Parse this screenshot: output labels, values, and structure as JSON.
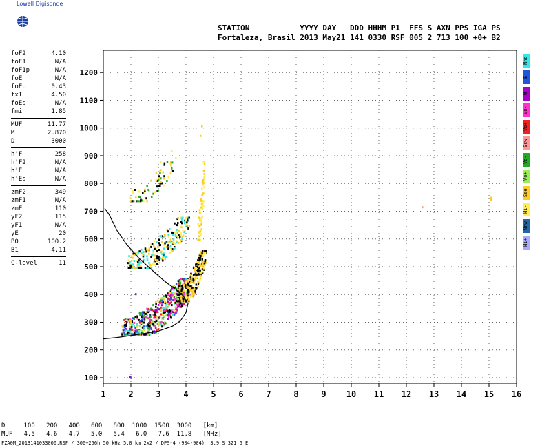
{
  "brand": {
    "name": "Lowell Digisonde"
  },
  "header": {
    "line1": "STATION           YYYY DAY   DDD HHHM P1  FFS S AXN PPS IGA PS",
    "line2": "Fortaleza, Brasil 2013 May21 141 0330 RSF 005 2 713 100 +0+ B2"
  },
  "params": [
    {
      "name": "foF2",
      "value": "4.10"
    },
    {
      "name": "foF1",
      "value": "N/A"
    },
    {
      "name": "foF1p",
      "value": "N/A"
    },
    {
      "name": "foE",
      "value": "N/A"
    },
    {
      "name": "foEp",
      "value": "0.43"
    },
    {
      "name": "fxI",
      "value": "4.50"
    },
    {
      "name": "foEs",
      "value": "N/A"
    },
    {
      "name": "fmin",
      "value": "1.85"
    },
    {
      "sep": true
    },
    {
      "name": "MUF",
      "value": "11.77"
    },
    {
      "name": "M",
      "value": "2.870"
    },
    {
      "name": "D",
      "value": "3000"
    },
    {
      "sep": true
    },
    {
      "name": "h'F",
      "value": "258"
    },
    {
      "name": "h'F2",
      "value": "N/A"
    },
    {
      "name": "h'E",
      "value": "N/A"
    },
    {
      "name": "h'Es",
      "value": "N/A"
    },
    {
      "sep": true
    },
    {
      "name": "zmF2",
      "value": "349"
    },
    {
      "name": "zmF1",
      "value": "N/A"
    },
    {
      "name": "zmE",
      "value": "110"
    },
    {
      "name": "yF2",
      "value": "115"
    },
    {
      "name": "yF1",
      "value": "N/A"
    },
    {
      "name": "yE",
      "value": "20"
    },
    {
      "name": "B0",
      "value": "100.2"
    },
    {
      "name": "B1",
      "value": "4.11"
    },
    {
      "sep": true
    },
    {
      "name": "C-level",
      "value": "11"
    }
  ],
  "legend": [
    {
      "label": "Nno",
      "color": "#33e8e8"
    },
    {
      "label": "E",
      "color": "#2255dd"
    },
    {
      "label": "W",
      "color": "#aa00cc"
    },
    {
      "label": "Vo-",
      "color": "#ff33cc"
    },
    {
      "label": "Vo+",
      "color": "#ee2222"
    },
    {
      "label": "Ssw",
      "color": "#ff9999"
    },
    {
      "label": "Vo-",
      "color": "#22aa22"
    },
    {
      "label": "Vo+",
      "color": "#99ee55"
    },
    {
      "label": "Sse",
      "color": "#ffcc22"
    },
    {
      "label": "Hi-",
      "color": "#ffee55"
    },
    {
      "label": "Nnw",
      "color": "#2266aa"
    },
    {
      "label": "Hi+",
      "color": "#aaaaff"
    }
  ],
  "chart_data": {
    "type": "scatter",
    "xlim": [
      1,
      16
    ],
    "ylim": [
      80,
      1280
    ],
    "x_ticks": [
      "1",
      "2",
      "3",
      "4",
      "5",
      "6",
      "7",
      "8",
      "9",
      "10",
      "11",
      "12",
      "13",
      "14",
      "15",
      "16"
    ],
    "y_ticks": [
      "100",
      "200",
      "300",
      "400",
      "500",
      "600",
      "700",
      "800",
      "900",
      "1000",
      "1100",
      "1200"
    ],
    "grid": true,
    "profile_curve": [
      [
        1.05,
        710
      ],
      [
        1.2,
        690
      ],
      [
        1.5,
        630
      ],
      [
        1.85,
        580
      ],
      [
        2.3,
        530
      ],
      [
        2.8,
        485
      ],
      [
        3.2,
        450
      ],
      [
        3.6,
        420
      ],
      [
        3.9,
        395
      ],
      [
        4.05,
        370
      ]
    ],
    "trace_curve": [
      [
        1.0,
        240
      ],
      [
        1.5,
        245
      ],
      [
        2.0,
        252
      ],
      [
        2.5,
        260
      ],
      [
        3.0,
        268
      ],
      [
        3.5,
        285
      ],
      [
        3.8,
        305
      ],
      [
        4.0,
        335
      ],
      [
        4.08,
        370
      ]
    ],
    "point_clusters": [
      {
        "xr": [
          1.65,
          4.2
        ],
        "yr": [
          260,
          460
        ],
        "n": 620,
        "colors": [
          "#000000",
          "#000000",
          "#ff33cc",
          "#ffcc22",
          "#33e8e8",
          "#ee2222",
          "#aa00cc",
          "#22aa22",
          "#2255dd",
          "#99ee55"
        ]
      },
      {
        "xr": [
          3.7,
          4.7
        ],
        "yr": [
          380,
          560
        ],
        "n": 320,
        "colors": [
          "#ffcc22",
          "#ffcc22",
          "#ffee55",
          "#000000",
          "#000000"
        ]
      },
      {
        "xr": [
          1.85,
          4.1
        ],
        "yr": [
          500,
          680
        ],
        "n": 260,
        "colors": [
          "#ffee55",
          "#ffcc22",
          "#000000",
          "#000000",
          "#33e8e8"
        ]
      },
      {
        "xr": [
          4.4,
          4.65
        ],
        "yr": [
          600,
          880
        ],
        "n": 70,
        "colors": [
          "#ffcc22",
          "#ffee55"
        ]
      },
      {
        "xr": [
          1.95,
          3.5
        ],
        "yr": [
          740,
          880
        ],
        "n": 70,
        "colors": [
          "#000000",
          "#ffee55",
          "#22aa22",
          "#ffcc22"
        ]
      }
    ],
    "isolated_points": [
      {
        "x": 2.15,
        "y": 405,
        "color": "#2255dd"
      },
      {
        "x": 1.95,
        "y": 107,
        "color": "#aa00cc"
      },
      {
        "x": 1.98,
        "y": 103,
        "color": "#2255dd"
      },
      {
        "x": 12.55,
        "y": 718,
        "color": "#ff9966"
      },
      {
        "x": 15.05,
        "y": 752,
        "color": "#ffcc22"
      },
      {
        "x": 15.05,
        "y": 745,
        "color": "#ffcc22"
      },
      {
        "x": 4.55,
        "y": 1010,
        "color": "#ffcc22"
      },
      {
        "x": 4.5,
        "y": 975,
        "color": "#ffcc22"
      },
      {
        "x": 3.05,
        "y": 880,
        "color": "#ffee55"
      },
      {
        "x": 3.45,
        "y": 920,
        "color": "#ffee55"
      },
      {
        "x": 3.6,
        "y": 895,
        "color": "#ffee55"
      }
    ]
  },
  "footer": {
    "line1": "D     100   200   400   600   800  1000  1500  3000   [km]",
    "line2": "MUF   4.5   4.6   4.7   5.0   5.4   6.0   7.6  11.8   [MHz]",
    "line3": "FZA0M_2013141033000.RSF / 300+256h 50 kHz 5.0 km 2x2 / DPS-4 (904-904)  3.9 S 321.6 E"
  }
}
